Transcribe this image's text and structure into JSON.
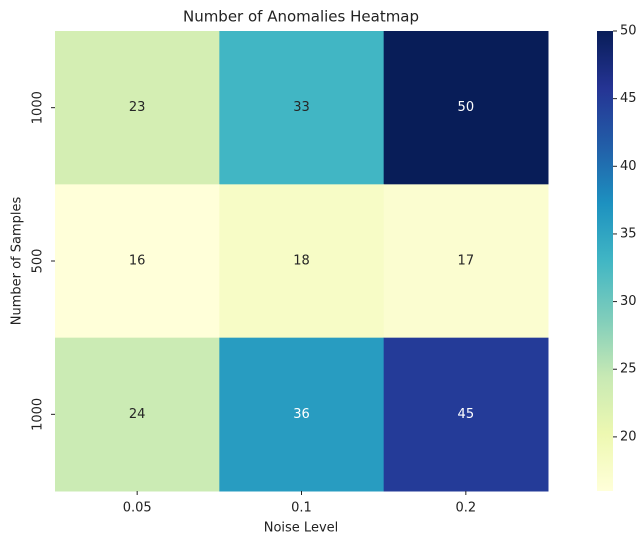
{
  "chart_data": {
    "type": "heatmap",
    "title": "Number of Anomalies Heatmap",
    "x_label": "Noise Level",
    "y_label": "Number of Samples",
    "x_categories": [
      "0.05",
      "0.1",
      "0.2"
    ],
    "y_categories": [
      "1000",
      "500",
      "1000"
    ],
    "values": [
      [
        23,
        33,
        50
      ],
      [
        16,
        18,
        17
      ],
      [
        24,
        36,
        45
      ]
    ],
    "colormap": [
      "#ffffd9",
      "#edf8b1",
      "#c7e9b4",
      "#7fcdbb",
      "#41b6c4",
      "#1d91c0",
      "#225ea8",
      "#253494",
      "#081d58"
    ],
    "clim": [
      16,
      50
    ],
    "cticks": [
      20,
      25,
      30,
      35,
      40,
      45,
      50
    ]
  }
}
